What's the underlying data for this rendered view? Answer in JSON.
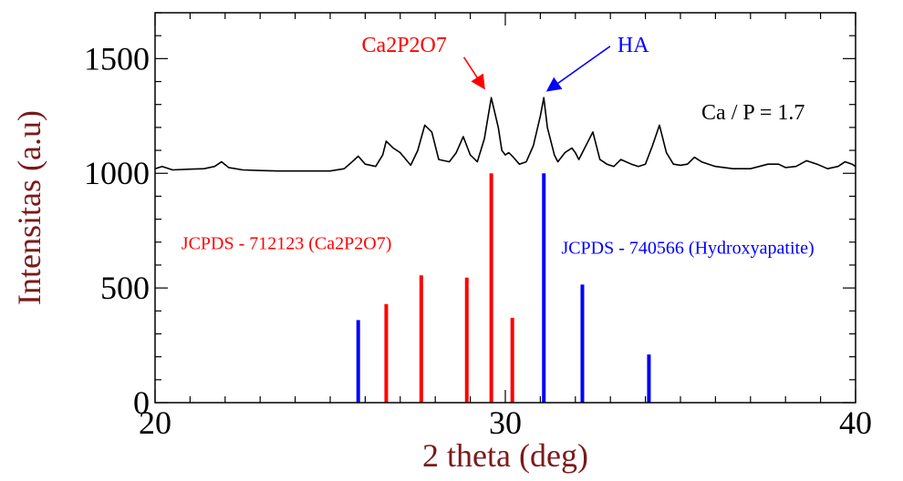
{
  "chart_data": {
    "type": "line",
    "title": "",
    "xlabel": "2 theta (deg)",
    "ylabel": "Intensitas (a.u)",
    "xlim": [
      20,
      40
    ],
    "ylim": [
      0,
      1700
    ],
    "x_ticks": [
      20,
      30,
      40
    ],
    "x_tick_labels": [
      "20",
      "30",
      "40"
    ],
    "y_ticks": [
      0,
      500,
      1000,
      1500
    ],
    "y_tick_labels": [
      "0",
      "500",
      "1000",
      "1500"
    ],
    "grid": false,
    "colors": {
      "measured": "#000000",
      "ca2p2o7": "#ff0000",
      "ha": "#0000ff",
      "axis_label": "#7a1a1a"
    },
    "series": [
      {
        "type": "line",
        "color": "#000000",
        "x": [
          20.0,
          20.2,
          20.5,
          21.0,
          21.4,
          21.7,
          21.9,
          22.1,
          22.5,
          23.0,
          23.5,
          24.0,
          24.5,
          25.0,
          25.4,
          25.7,
          25.8,
          26.0,
          26.3,
          26.5,
          26.6,
          26.8,
          27.0,
          27.3,
          27.5,
          27.7,
          27.9,
          28.1,
          28.4,
          28.6,
          28.8,
          29.0,
          29.2,
          29.4,
          29.6,
          29.8,
          29.9,
          30.0,
          30.1,
          30.2,
          30.4,
          30.6,
          30.8,
          31.0,
          31.1,
          31.2,
          31.4,
          31.5,
          31.7,
          31.9,
          32.0,
          32.1,
          32.3,
          32.5,
          32.7,
          32.9,
          33.1,
          33.3,
          33.6,
          33.8,
          34.0,
          34.2,
          34.4,
          34.6,
          34.8,
          35.0,
          35.2,
          35.4,
          35.6,
          35.8,
          36.0,
          36.5,
          37.0,
          37.5,
          37.8,
          38.0,
          38.3,
          38.6,
          38.9,
          39.2,
          39.5,
          39.7,
          39.9,
          40.0
        ],
        "y": [
          1020,
          1030,
          1015,
          1018,
          1020,
          1030,
          1050,
          1025,
          1015,
          1012,
          1010,
          1010,
          1010,
          1010,
          1020,
          1060,
          1075,
          1040,
          1030,
          1080,
          1140,
          1110,
          1090,
          1035,
          1100,
          1210,
          1180,
          1060,
          1050,
          1090,
          1160,
          1080,
          1050,
          1150,
          1330,
          1200,
          1100,
          1080,
          1090,
          1075,
          1040,
          1050,
          1120,
          1250,
          1330,
          1200,
          1080,
          1050,
          1090,
          1110,
          1090,
          1060,
          1120,
          1180,
          1060,
          1040,
          1030,
          1060,
          1040,
          1030,
          1040,
          1120,
          1210,
          1090,
          1040,
          1035,
          1040,
          1070,
          1050,
          1040,
          1030,
          1020,
          1020,
          1040,
          1040,
          1025,
          1030,
          1055,
          1040,
          1020,
          1030,
          1050,
          1040,
          1030
        ]
      },
      {
        "type": "stick",
        "color": "#ff0000",
        "x": [
          26.6,
          27.6,
          28.9,
          29.6,
          30.2
        ],
        "y": [
          430,
          555,
          545,
          1000,
          370
        ]
      },
      {
        "type": "stick",
        "color": "#0000ff",
        "x": [
          25.8,
          31.1,
          32.2,
          34.1
        ],
        "y": [
          360,
          1000,
          515,
          210
        ]
      }
    ],
    "annotations": [
      {
        "text": "Ca2P2O7",
        "color": "#ff0000",
        "x": 25.9,
        "y": 1530,
        "size": 24,
        "arrow_to": [
          29.4,
          1370
        ]
      },
      {
        "text": "HA",
        "color": "#0000ff",
        "x": 33.2,
        "y": 1530,
        "size": 24,
        "arrow_to": [
          31.2,
          1360
        ]
      },
      {
        "text": "Ca / P = 1.7",
        "color": "#000000",
        "x": 35.6,
        "y": 1235,
        "size": 24
      },
      {
        "text": "JCPDS - 712123 (Ca2P2O7)",
        "color": "#ff0000",
        "x": 20.75,
        "y": 670,
        "size": 20
      },
      {
        "text": "JCPDS - 740566 (Hydroxyapatite)",
        "color": "#0000ff",
        "x": 31.6,
        "y": 650,
        "size": 20
      }
    ]
  }
}
